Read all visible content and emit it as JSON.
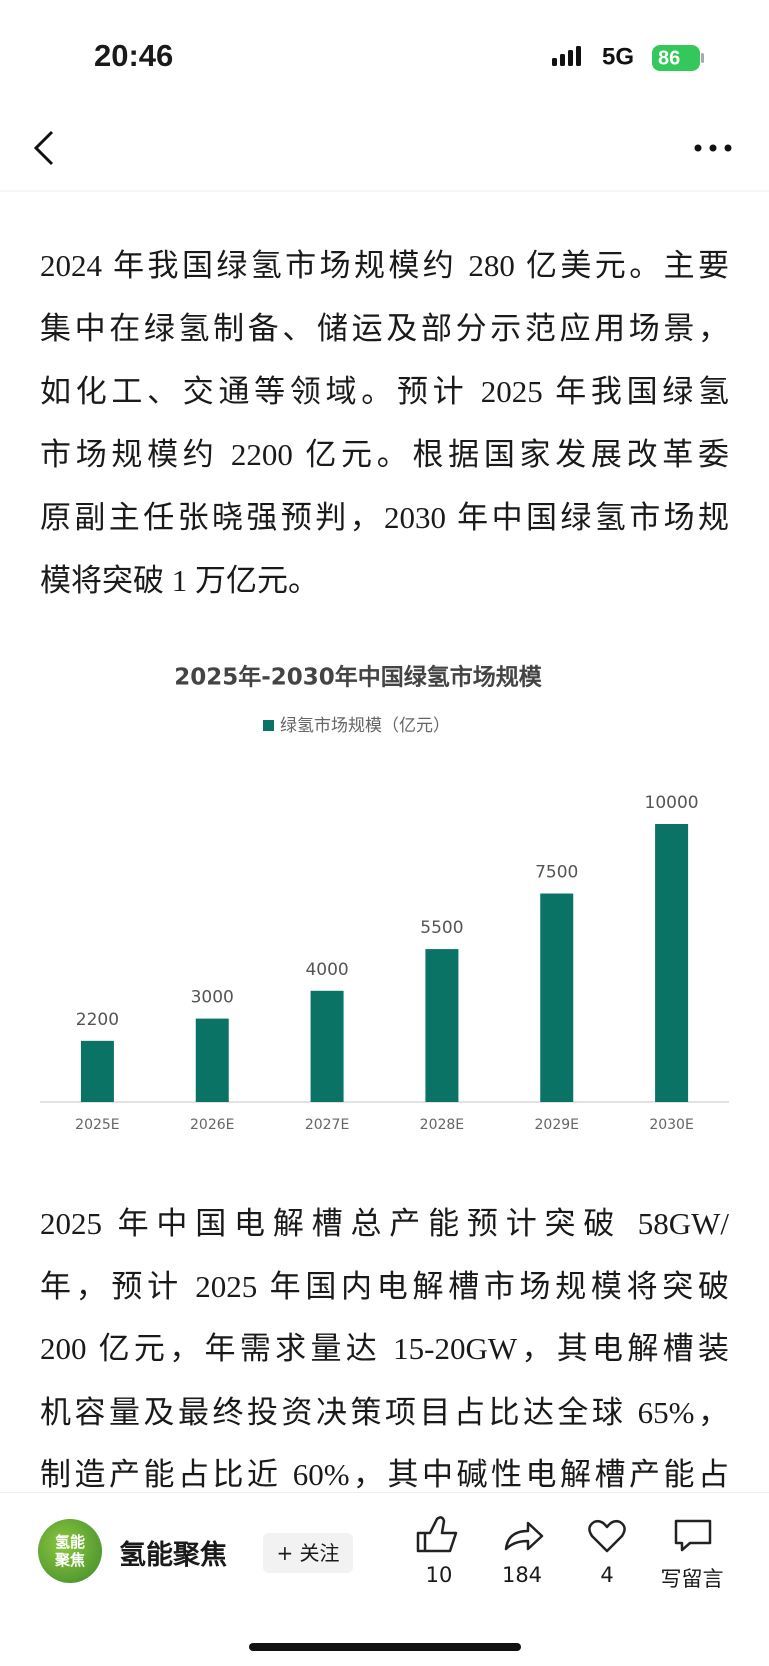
{
  "status_bar": {
    "time": "20:46",
    "network": "5G",
    "battery": "86"
  },
  "article": {
    "paragraphs": [
      [
        "2024 年我国绿氢市场规模约 280 亿美元。主要",
        "集中在绿氢制备、储运及部分示范应用场景，",
        "如化工、交通等领域。预计 2025 年我国绿氢",
        "市场规模约 2200 亿元。根据国家发展改革委",
        "原副主任张晓强预判，2030 年中国绿氢市场规",
        "模将突破 1 万亿元。"
      ],
      [
        "2025 年中国电解槽总产能预计突破 58GW/",
        "年，预计 2025 年国内电解槽市场规模将突破",
        "200 亿元，年需求量达 15-20GW，其电解槽装",
        "机容量及最终投资决策项目占比达全球 65%，",
        "制造产能占比近 60%，其中碱性电解槽产能占"
      ]
    ]
  },
  "chart": {
    "type": "bar",
    "title": "2025年-2030年中国绿氢市场规模",
    "series_name": "绿氢市场规模（亿元）",
    "color": "#0b7366",
    "categories": [
      "2025E",
      "2026E",
      "2027E",
      "2028E",
      "2029E",
      "2030E"
    ],
    "values": [
      2200,
      3000,
      4000,
      5500,
      7500,
      10000
    ]
  },
  "footer": {
    "account": "氢能聚焦",
    "avatar_text": [
      "氢能",
      "聚焦"
    ],
    "follow": "+ 关注",
    "likes": 10,
    "shares": 184,
    "favorites": 4,
    "comment": "写留言"
  }
}
